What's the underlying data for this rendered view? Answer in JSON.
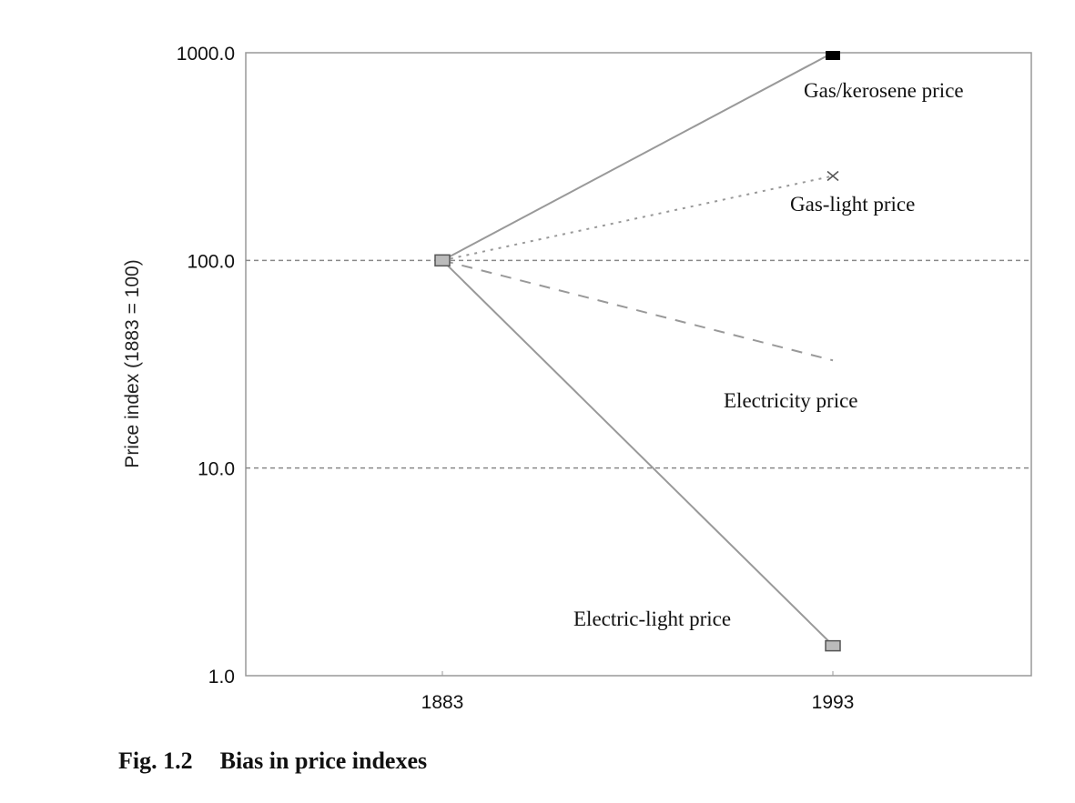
{
  "chart_data": {
    "type": "line",
    "title": "",
    "xlabel": "",
    "ylabel": "Price index (1883 = 100)",
    "yscale": "log",
    "ylim": [
      1,
      1000
    ],
    "yticks": [
      "1000.0",
      "100.0",
      "10.0",
      "1.0"
    ],
    "ytick_values": [
      1000,
      100,
      10,
      1
    ],
    "x": [
      "1883",
      "1993"
    ],
    "grid": "horizontal dashed at 10 and 100",
    "series": [
      {
        "name": "Gas/kerosene price",
        "values": [
          100,
          1000
        ],
        "style": "solid",
        "marker_end": "black-square"
      },
      {
        "name": "Gas-light price",
        "values": [
          100,
          255
        ],
        "style": "dotted",
        "marker_end": "x"
      },
      {
        "name": "Electricity price",
        "values": [
          100,
          33
        ],
        "style": "dashed",
        "marker_end": "none"
      },
      {
        "name": "Electric-light price",
        "values": [
          100,
          1.4
        ],
        "style": "solid",
        "marker_end": "gray-square"
      }
    ],
    "legend": "inline labels near line ends"
  },
  "caption": {
    "number": "Fig. 1.2",
    "text": "Bias in price indexes"
  }
}
